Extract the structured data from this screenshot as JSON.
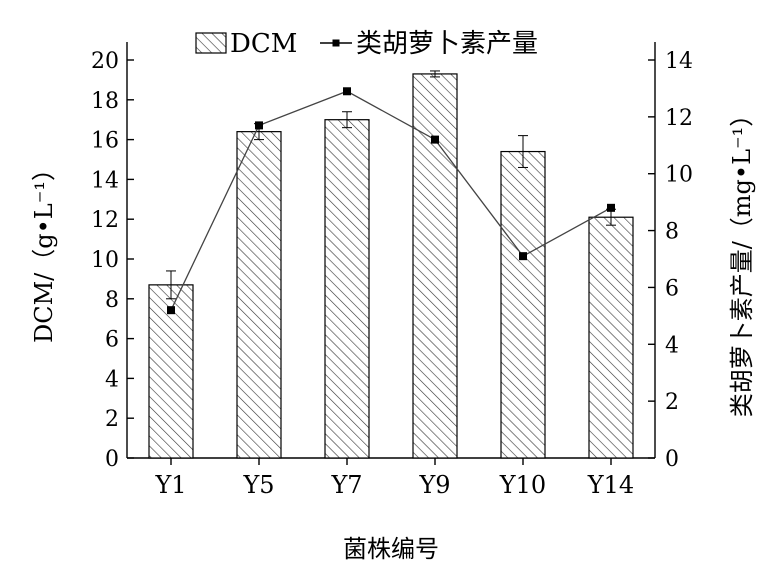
{
  "chart_data": {
    "type": "bar",
    "categories": [
      "Y1",
      "Y5",
      "Y7",
      "Y9",
      "Y10",
      "Y14"
    ],
    "xlabel": "菌株编号",
    "ylabel": "DCM/（g•L⁻¹）",
    "y2label": "类胡萝卜素产量/（mg•L⁻¹）",
    "ylim": [
      0,
      20
    ],
    "y2lim": [
      0,
      14
    ],
    "yticks": [
      0,
      2,
      4,
      6,
      8,
      10,
      12,
      14,
      16,
      18,
      20
    ],
    "y2ticks": [
      0,
      2,
      4,
      6,
      8,
      10,
      12,
      14
    ],
    "grid": false,
    "legend_position": "top-center",
    "series": [
      {
        "name": "DCM",
        "kind": "bar",
        "axis": "left",
        "values": [
          8.7,
          16.4,
          17.0,
          19.3,
          15.4,
          12.1
        ],
        "errors": [
          0.7,
          0.4,
          0.4,
          0.15,
          0.8,
          0.4
        ],
        "pattern": "diagonal-hatch"
      },
      {
        "name": "类胡萝卜素产量",
        "kind": "line",
        "axis": "right",
        "values": [
          5.2,
          11.7,
          12.9,
          11.2,
          7.1,
          8.8
        ],
        "marker": "square"
      }
    ]
  }
}
